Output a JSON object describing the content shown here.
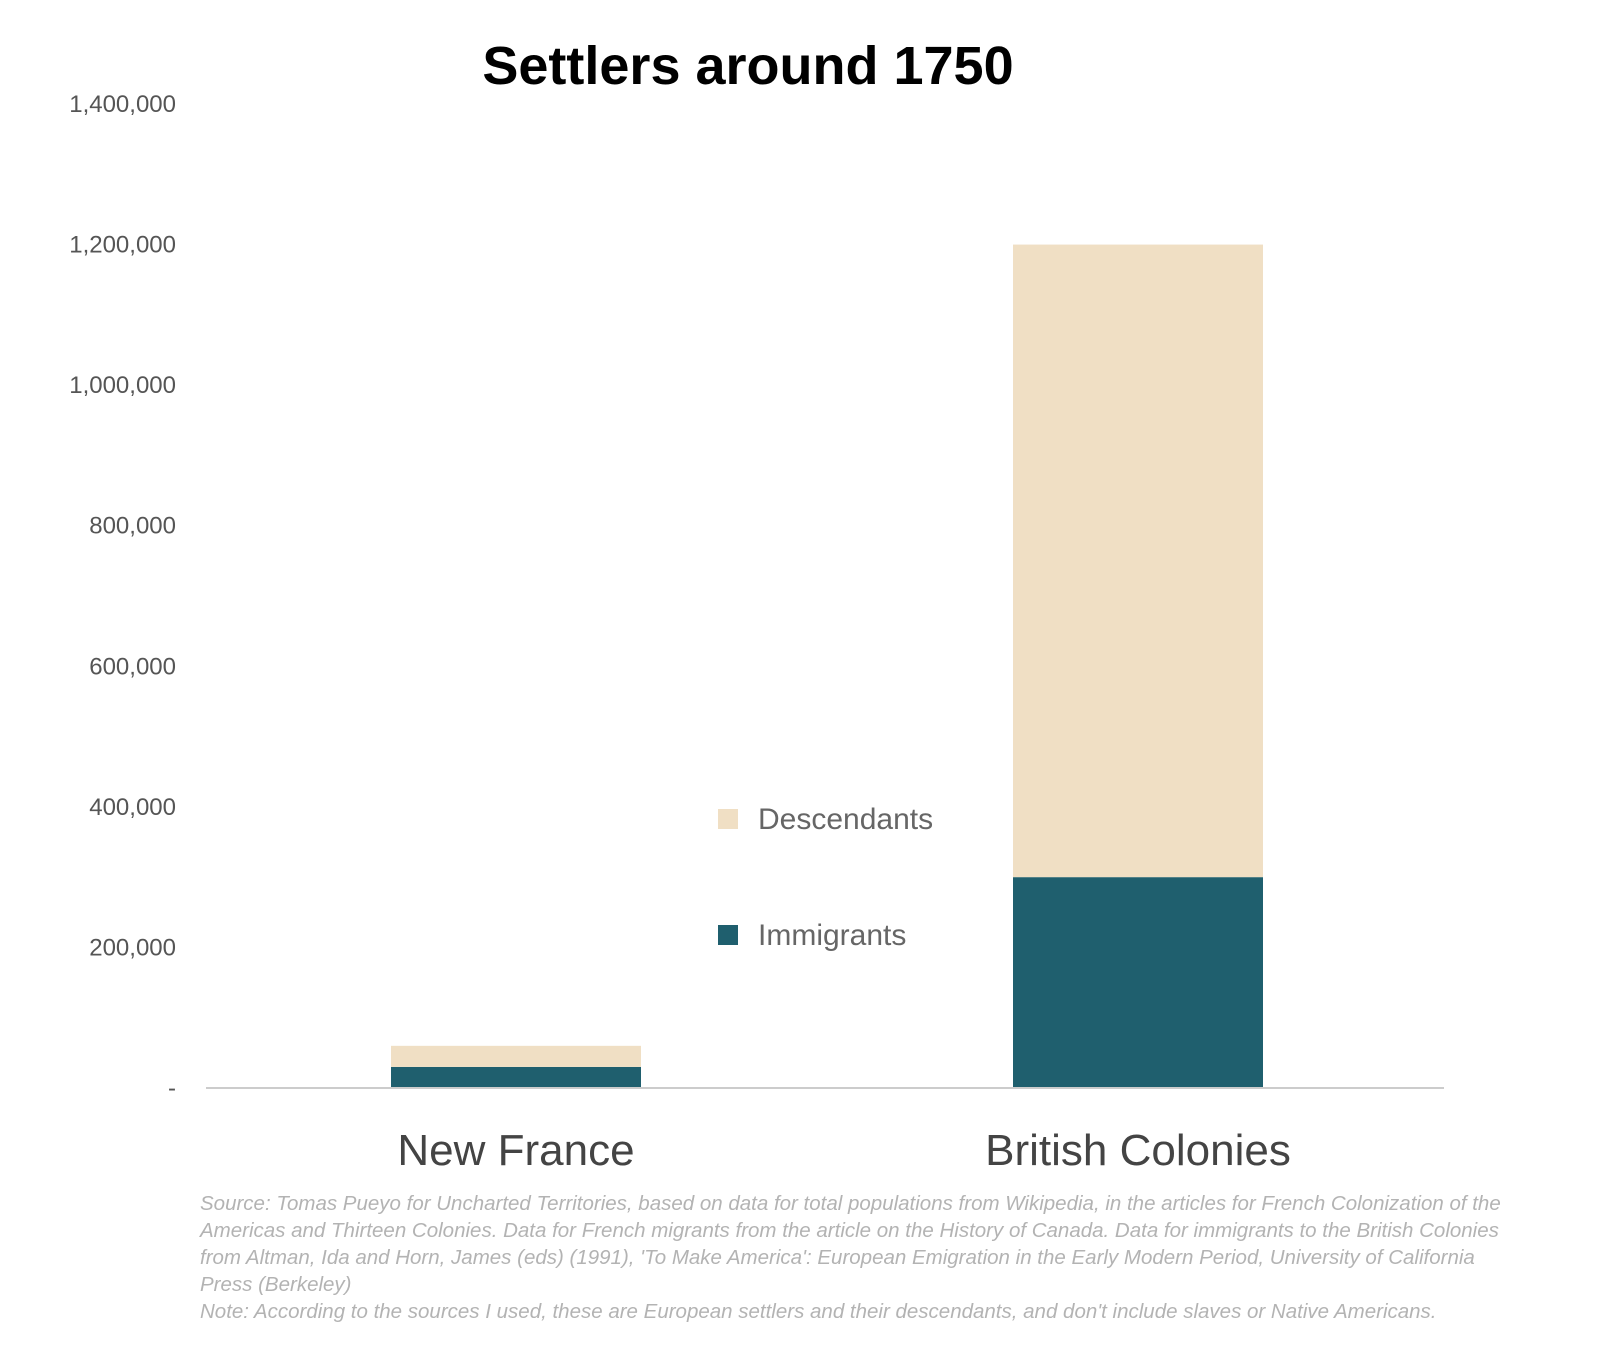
{
  "chart_data": {
    "type": "bar",
    "stacked": true,
    "title": "Settlers around 1750",
    "xlabel": "",
    "ylabel": "",
    "categories": [
      "New France",
      "British Colonies"
    ],
    "series": [
      {
        "name": "Immigrants",
        "values": [
          30000,
          300000
        ],
        "color": "#1f5f6e"
      },
      {
        "name": "Descendants",
        "values": [
          30000,
          900000
        ],
        "color": "#f0dfc4"
      }
    ],
    "ylim": [
      0,
      1400000
    ],
    "yticks": [
      0,
      200000,
      400000,
      600000,
      800000,
      1000000,
      1200000,
      1400000
    ],
    "ytick_labels": [
      "-",
      "200,000",
      "400,000",
      "600,000",
      "800,000",
      "1,000,000",
      "1,200,000",
      "1,400,000"
    ],
    "legend_order": [
      "Descendants",
      "Immigrants"
    ],
    "legend_position": "center",
    "grid": false
  },
  "footer": {
    "source": "Source: Tomas Pueyo for Uncharted Territories, based on data for total populations from Wikipedia, in the articles for French Colonization of the Americas and Thirteen Colonies. Data for French migrants from the article on the History of Canada. Data for immigrants to the British Colonies from Altman, Ida and Horn, James (eds) (1991), 'To Make America': European Emigration in the Early Modern Period, University of California Press (Berkeley)",
    "note": "Note: According to the sources I used, these are European settlers and their descendants, and don't include slaves or Native Americans."
  },
  "colors": {
    "axis": "#cccccc",
    "tick_text": "#555555",
    "category_text": "#444444"
  }
}
